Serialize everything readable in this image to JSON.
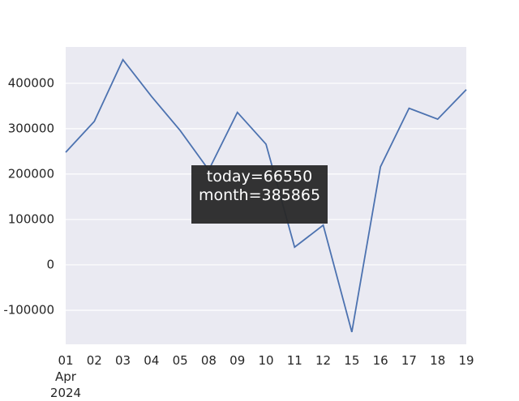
{
  "chart_data": {
    "type": "line",
    "categories": [
      "01\nApr\n2024",
      "02",
      "03",
      "04",
      "05",
      "08",
      "09",
      "10",
      "11",
      "12",
      "15",
      "16",
      "17",
      "18",
      "19"
    ],
    "series": [
      {
        "name": "month",
        "color": "#4c72b0",
        "values": [
          248000,
          316000,
          452000,
          371000,
          296000,
          209000,
          336000,
          266000,
          39000,
          87500,
          -148000,
          216000,
          345000,
          321000,
          386000
        ]
      }
    ],
    "ylim": [
      -175000,
      480000
    ],
    "yticks": [
      -100000,
      0,
      100000,
      200000,
      300000,
      400000
    ],
    "grid": true,
    "tooltip": {
      "lines": [
        "today=66550",
        "month=385865"
      ]
    }
  }
}
